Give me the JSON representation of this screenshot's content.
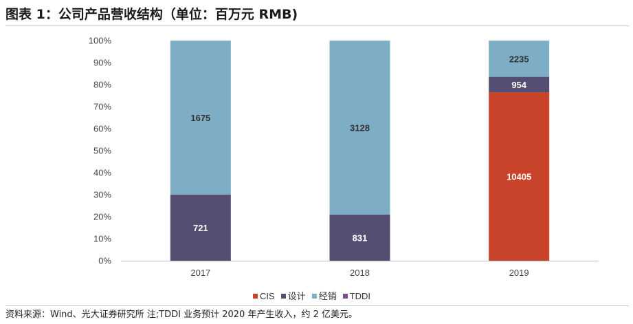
{
  "title": "图表 1：公司产品营收结构（单位：百万元 RMB)",
  "source": "资料来源：Wind、光大证券研究所 注;TDDI 业务预计 2020 年产生收入，约 2 亿美元。",
  "colors": {
    "CIS": "#c8432a",
    "设计": "#554d72",
    "经销": "#7eaec6",
    "TDDI": "#7a4d8a"
  },
  "chart_data": {
    "type": "bar",
    "stacked": "percent",
    "categories": [
      "2017",
      "2018",
      "2019"
    ],
    "series": [
      {
        "name": "CIS",
        "values": [
          0,
          0,
          10405
        ],
        "labels": [
          "",
          "",
          "10405"
        ]
      },
      {
        "name": "设计",
        "values": [
          721,
          831,
          954
        ],
        "labels": [
          "721",
          "831",
          "954"
        ]
      },
      {
        "name": "经销",
        "values": [
          1675,
          3128,
          2235
        ],
        "labels": [
          "1675",
          "3128",
          "2235"
        ]
      },
      {
        "name": "TDDI",
        "values": [
          0,
          0,
          0
        ],
        "labels": [
          "",
          "",
          ""
        ]
      }
    ],
    "y_ticks": [
      "0%",
      "10%",
      "20%",
      "30%",
      "40%",
      "50%",
      "60%",
      "70%",
      "80%",
      "90%",
      "100%"
    ],
    "ylim": [
      0,
      100
    ],
    "legend": [
      "CIS",
      "设计",
      "经销",
      "TDDI"
    ],
    "legend_position": "bottom",
    "grid": false
  }
}
